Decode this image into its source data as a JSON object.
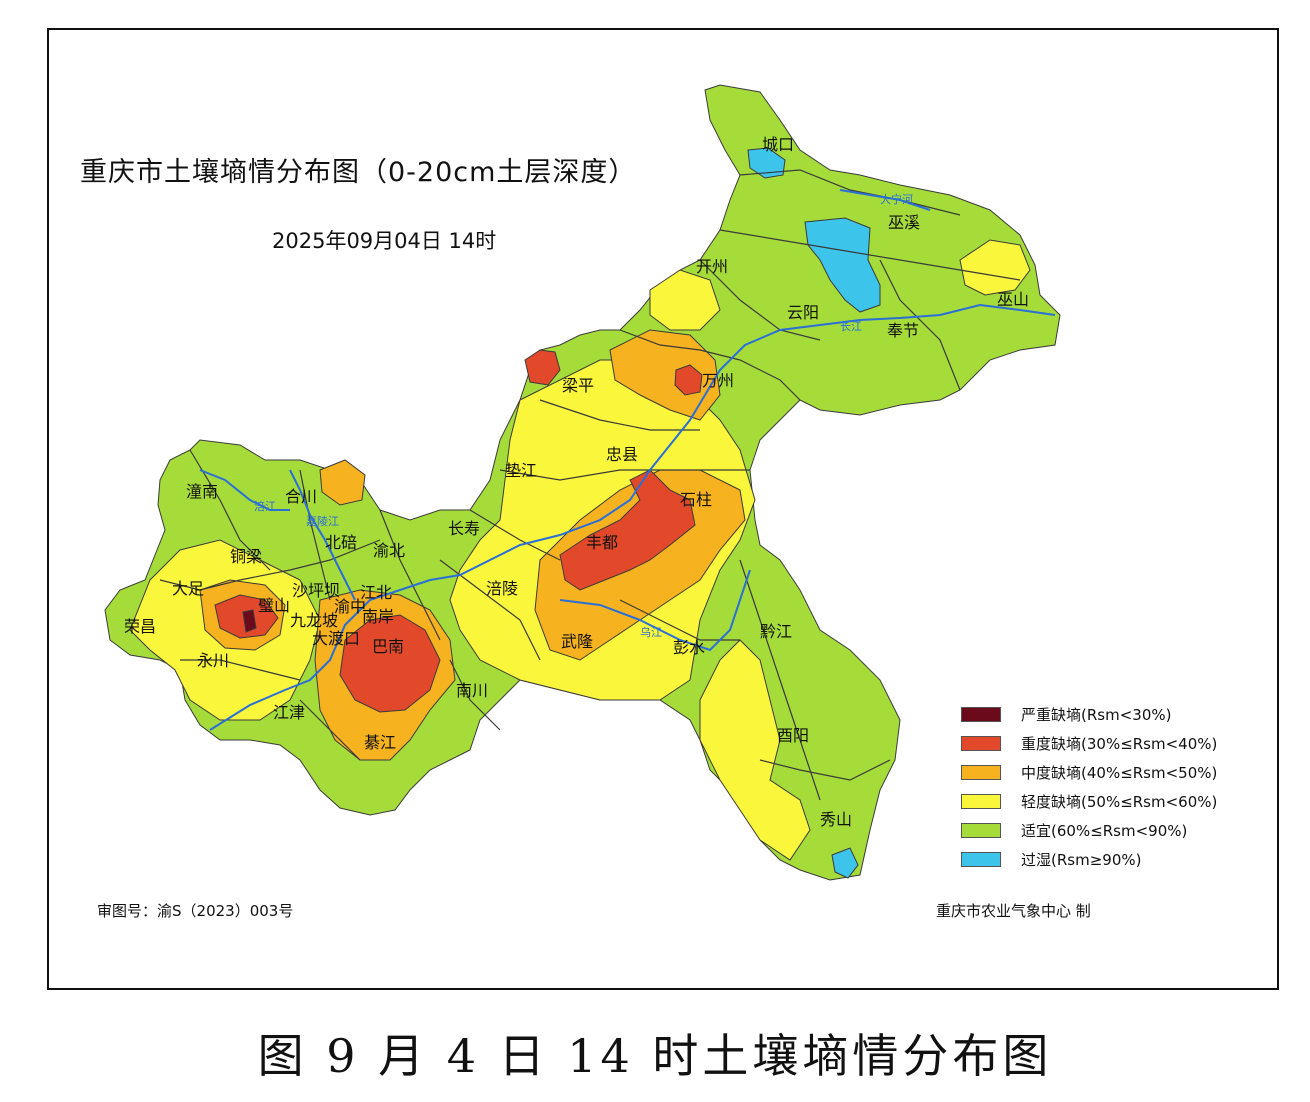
{
  "map": {
    "title": "重庆市土壤墒情分布图（0-20cm土层深度）",
    "datetime": "2025年09月04日  14时",
    "approval_number": "审图号：渝S（2023）003号",
    "producer": "重庆市农业气象中心 制",
    "caption": "图   9 月 4 日 14 时土壤墒情分布图",
    "colors": {
      "severe": "#6b0a1a",
      "heavy": "#e2492a",
      "moderate": "#f6b21f",
      "light": "#f9f63b",
      "suitable": "#a6dc3a",
      "wet": "#3cc4ea",
      "river": "#2a6fd6",
      "border": "#3a3a3a"
    },
    "legend": [
      {
        "label": "严重缺墒(Rsm<30%)",
        "color": "#6b0a1a"
      },
      {
        "label": "重度缺墒(30%≤Rsm<40%)",
        "color": "#e2492a"
      },
      {
        "label": "中度缺墒(40%≤Rsm<50%)",
        "color": "#f6b21f"
      },
      {
        "label": "轻度缺墒(50%≤Rsm<60%)",
        "color": "#f9f63b"
      },
      {
        "label": "适宜(60%≤Rsm<90%)",
        "color": "#a6dc3a"
      },
      {
        "label": "过湿(Rsm≥90%)",
        "color": "#3cc4ea"
      }
    ],
    "places": {
      "chengkou": "城口",
      "wuxi": "巫溪",
      "kaizhou": "开州",
      "yunyang": "云阳",
      "fengjie": "奉节",
      "wushan": "巫山",
      "liangping": "梁平",
      "wanzhou": "万州",
      "zhongxian": "忠县",
      "dianjiang": "垫江",
      "shizhu": "石柱",
      "fengdu": "丰都",
      "changshou": "长寿",
      "fuling": "涪陵",
      "wulong": "武隆",
      "pengshui": "彭水",
      "qianjiang": "黔江",
      "youyang": "酉阳",
      "xiushan": "秀山",
      "nanchuan": "南川",
      "qijiang": "綦江",
      "banan": "巴南",
      "jiangjin": "江津",
      "yongchuan": "永川",
      "rongchang": "荣昌",
      "dazu": "大足",
      "tongliang": "铜梁",
      "bishan": "璧山",
      "hechuan": "合川",
      "tongnan": "潼南",
      "beibei": "北碚",
      "yubei": "渝北",
      "shapingba": "沙坪坝",
      "jiangbei": "江北",
      "nanan": "南岸",
      "jiulongpo": "九龙坡",
      "dadukou": "大渡口",
      "yuzhong": "渝中"
    },
    "rivers": {
      "daning": "大宁河",
      "yangtze": "长江",
      "fujiang": "涪江",
      "jialing": "嘉陵江",
      "wujiang": "乌江"
    }
  }
}
